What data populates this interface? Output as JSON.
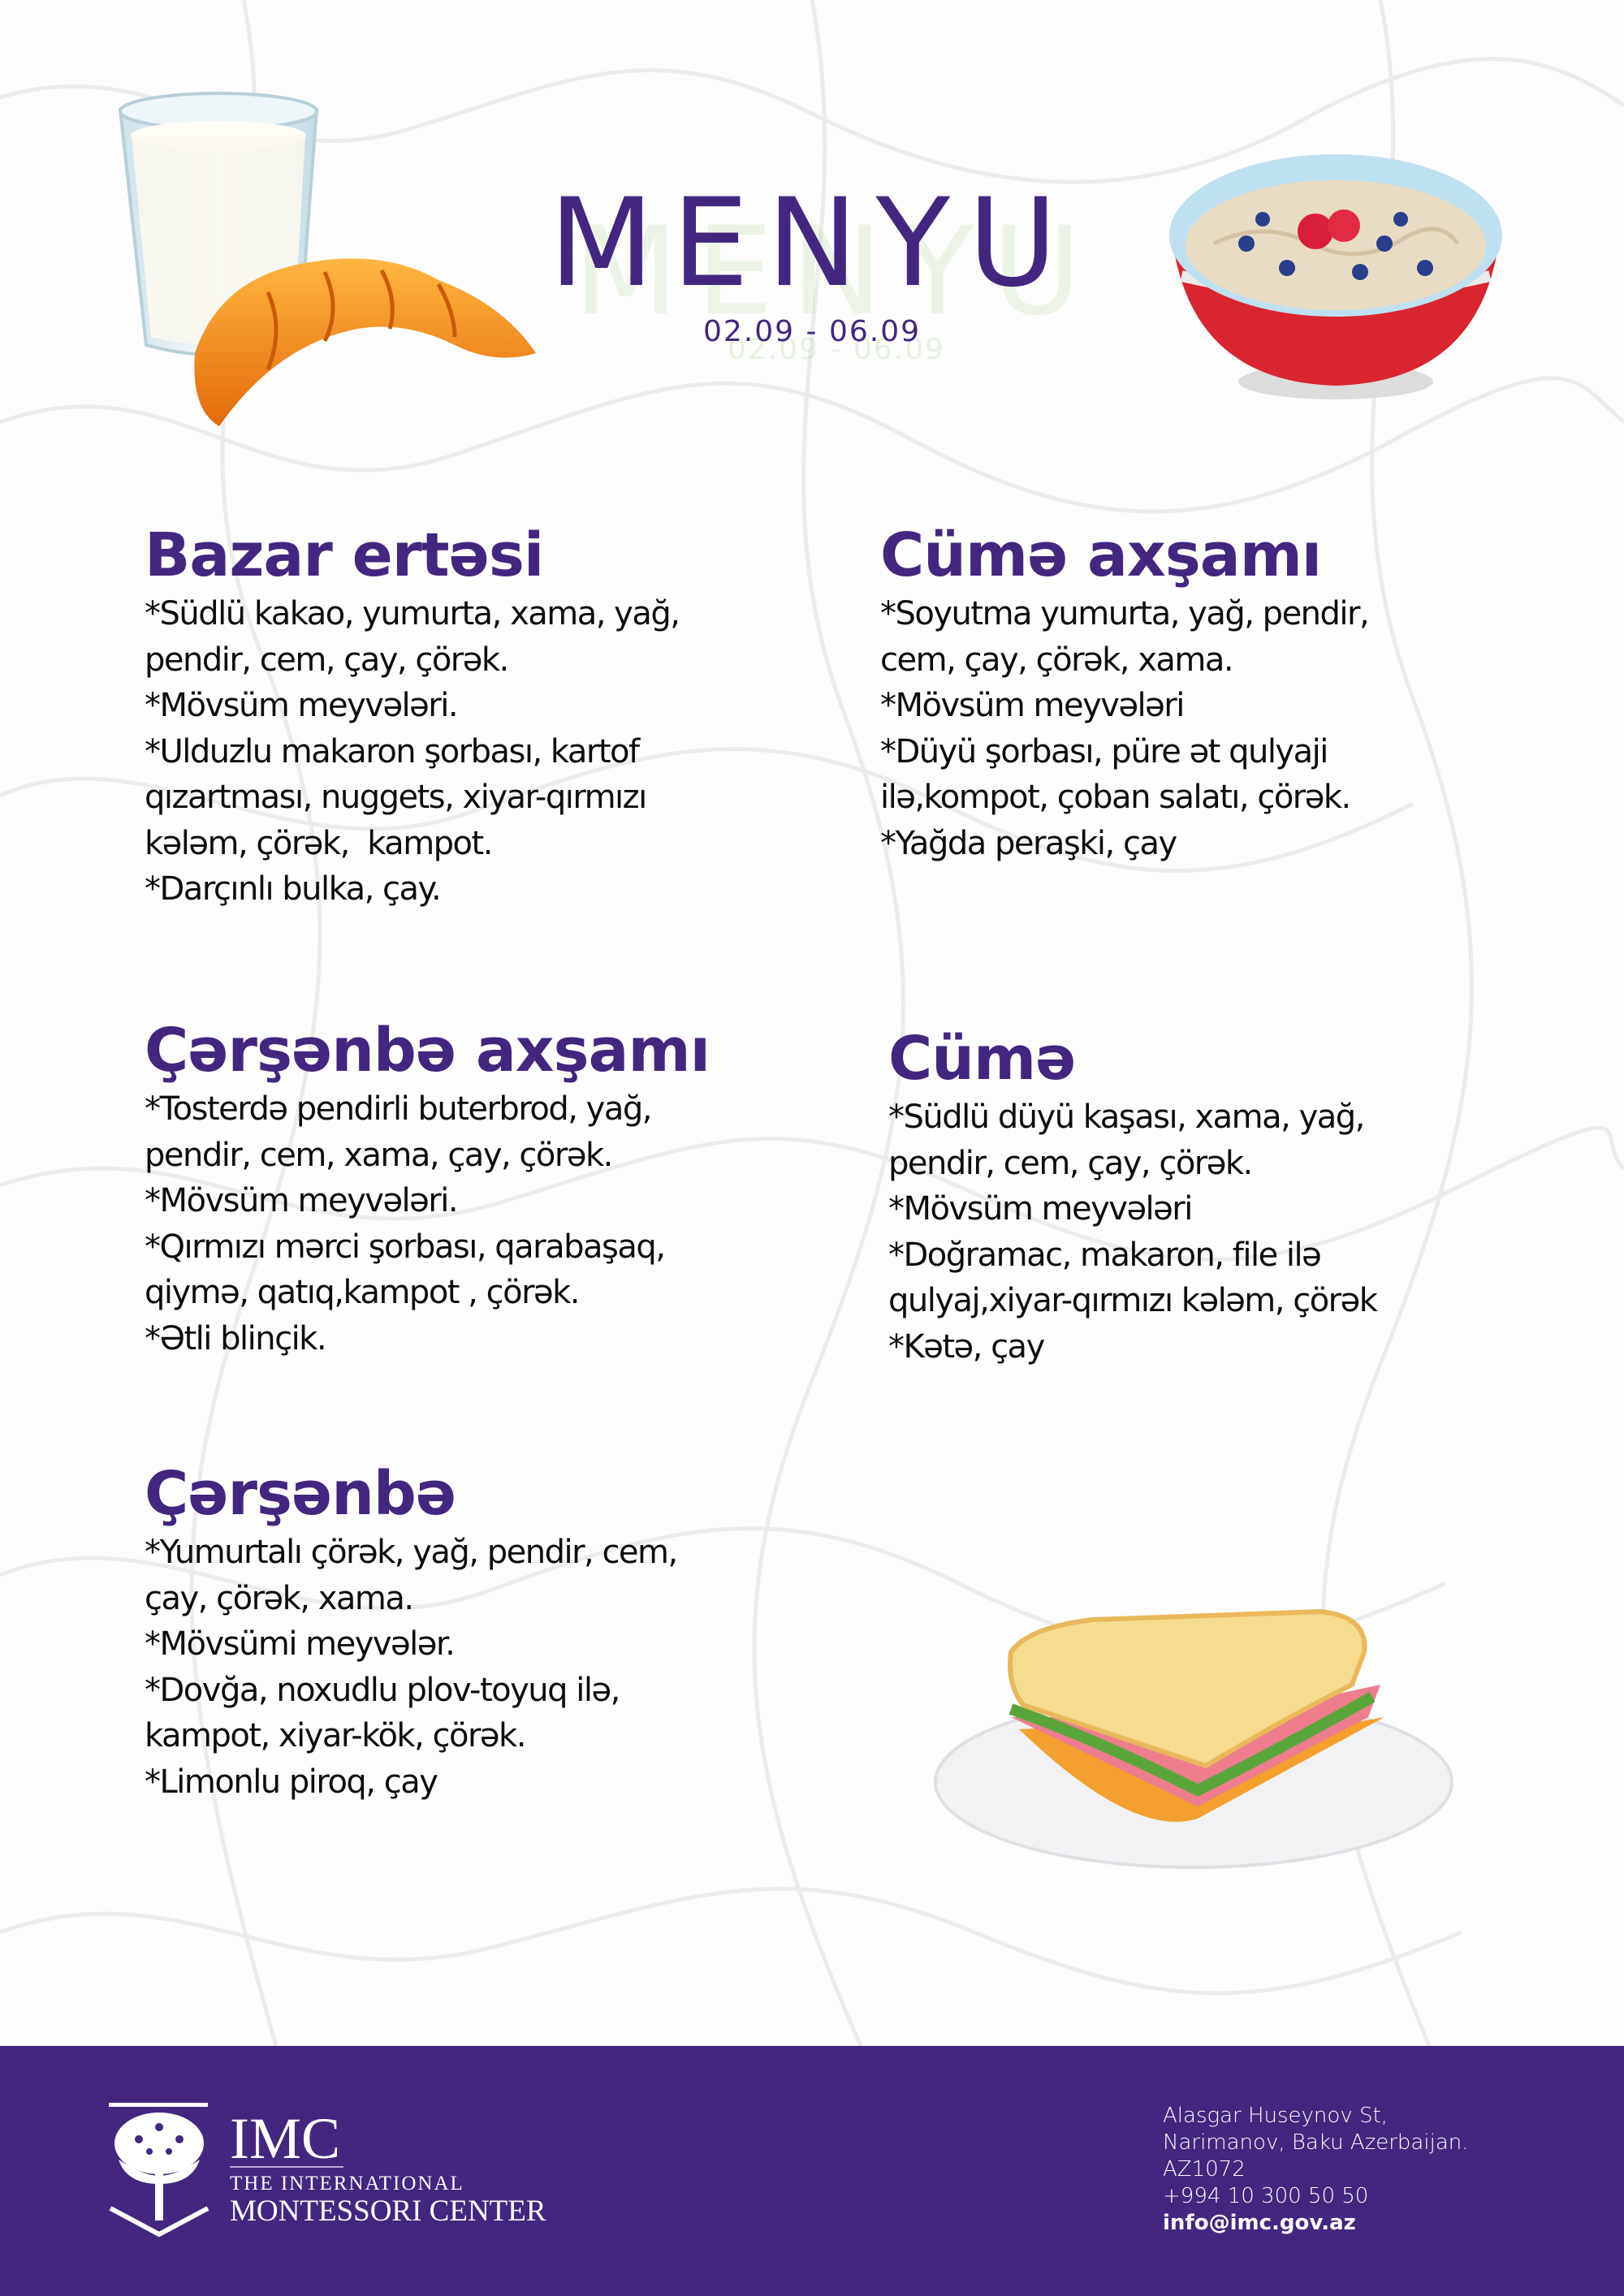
{
  "header": {
    "title": "MENYU",
    "date_range": "02.09 - 06.09"
  },
  "sections": [
    {
      "day": "Bazar ertəsi",
      "lines": [
        "*Südlü kakao, yumurta, xama, yağ,",
        "pendir, cem, çay, çörək.",
        "*Mövsüm meyvələri.",
        "*Ulduzlu makaron şorbası, kartof",
        "qızartması, nuggets, xiyar-qırmızı",
        "kələm, çörək,  kampot.",
        "*Darçınlı bulka, çay."
      ]
    },
    {
      "day": "Cümə axşamı",
      "lines": [
        "*Soyutma yumurta, yağ, pendir,",
        "cem, çay, çörək, xama.",
        "*Mövsüm meyvələri",
        "*Düyü şorbası, püre ət qulyaji",
        "ilə,kompot, çoban salatı, çörək.",
        "*Yağda peraşki, çay"
      ]
    },
    {
      "day": "Çərşənbə axşamı",
      "lines": [
        "*Tosterdə pendirli buterbrod, yağ,",
        "pendir, cem, xama, çay, çörək.",
        "*Mövsüm meyvələri.",
        "*Qırmızı mərci şorbası, qarabaşaq,",
        "qiymə, qatıq,kampot , çörək.",
        "*Ətli blinçik."
      ]
    },
    {
      "day": "Cümə",
      "lines": [
        "*Südlü düyü kaşası, xama, yağ,",
        "pendir, cem, çay, çörək.",
        "*Mövsüm meyvələri",
        "*Doğramac, makaron, file ilə",
        "qulyaj,xiyar-qırmızı kələm, çörək",
        "*Kətə, çay"
      ]
    },
    {
      "day": "Çərşənbə",
      "lines": [
        "*Yumurtalı çörək, yağ, pendir, cem,",
        "çay, çörək, xama.",
        "*Mövsümi meyvələr.",
        "*Dovğa, noxudlu plov-toyuq ilə,",
        "kampot, xiyar-kök, çörək.",
        "*Limonlu piroq, çay"
      ]
    }
  ],
  "footer": {
    "logo": {
      "name": "IMC",
      "line1": "THE INTERNATIONAL",
      "line2": "MONTESSORI CENTER"
    },
    "address_line1": "Alasgar Huseynov St,",
    "address_line2": "Narimanov, Baku Azerbaijan.",
    "postal_code": "AZ1072",
    "phone": "+994 10 300 50 50",
    "email": "info@imc.gov.az"
  },
  "colors": {
    "brand_purple": "#43267f",
    "body_text": "#0d0d0d",
    "background": "#fdfdfd"
  },
  "images": [
    "milk-glass-and-croissant",
    "oatmeal-bowl-with-berries",
    "sandwich-on-plate"
  ]
}
